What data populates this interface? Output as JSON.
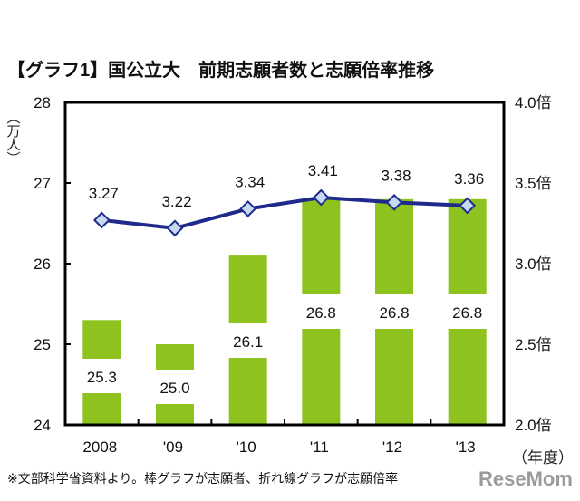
{
  "title": "【グラフ1】国公立大　前期志願者数と志願倍率推移",
  "footnote": "※文部科学省資料より。棒グラフが志願者、折れ線グラフが志願倍率",
  "watermark": "ReseMom",
  "colors": {
    "bar": "#8dc21f",
    "line": "#1f2a8c",
    "marker_fill": "#c6d9f1",
    "frame": "#000000"
  },
  "chart_data": {
    "type": "bar+line",
    "categories": [
      "2008",
      "'09",
      "'10",
      "'11",
      "'12",
      "'13"
    ],
    "xlabel": "（年度）",
    "ylabel": "（万人）",
    "ylim": [
      24,
      28
    ],
    "yticks": [
      "24",
      "25",
      "26",
      "27",
      "28"
    ],
    "y2lim": [
      2.0,
      4.0
    ],
    "y2ticks": [
      "2.0倍",
      "2.5倍",
      "3.0倍",
      "3.5倍",
      "4.0倍"
    ],
    "grid": false,
    "series": [
      {
        "type": "bar",
        "axis": "left",
        "values": [
          25.3,
          25.0,
          26.1,
          26.8,
          26.8,
          26.8
        ],
        "labels": [
          "25.3",
          "25.0",
          "26.1",
          "26.8",
          "26.8",
          "26.8"
        ]
      },
      {
        "type": "line",
        "axis": "right",
        "marker": "diamond",
        "values": [
          3.27,
          3.22,
          3.34,
          3.41,
          3.38,
          3.36
        ],
        "labels": [
          "3.27",
          "3.22",
          "3.34",
          "3.41",
          "3.38",
          "3.36"
        ]
      }
    ]
  }
}
